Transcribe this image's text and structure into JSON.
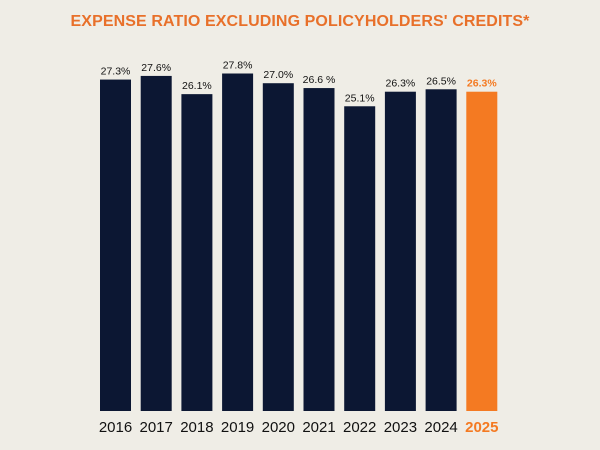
{
  "title": "EXPENSE RATIO EXCLUDING POLICYHOLDERS' CREDITS*",
  "colors": {
    "bar": "#0c1733",
    "highlight": "#f47a22",
    "title": "#e8702a",
    "background": "#efede6",
    "text": "#111111"
  },
  "chart_data": {
    "type": "bar",
    "title": "EXPENSE RATIO EXCLUDING POLICYHOLDERS' CREDITS*",
    "categories": [
      "2016",
      "2017",
      "2018",
      "2019",
      "2020",
      "2021",
      "2022",
      "2023",
      "2024",
      "2025"
    ],
    "values": [
      27.3,
      27.6,
      26.1,
      27.8,
      27.0,
      26.6,
      25.1,
      26.3,
      26.5,
      26.3
    ],
    "data_labels": [
      "27.3%",
      "27.6%",
      "26.1%",
      "27.8%",
      "27.0%",
      "26.6 %",
      "25.1%",
      "26.3%",
      "26.5%",
      "26.3%"
    ],
    "highlight_index": 9,
    "xlabel": "",
    "ylabel": "",
    "ylim": [
      0,
      28.5
    ],
    "grid": false,
    "legend": "none"
  }
}
